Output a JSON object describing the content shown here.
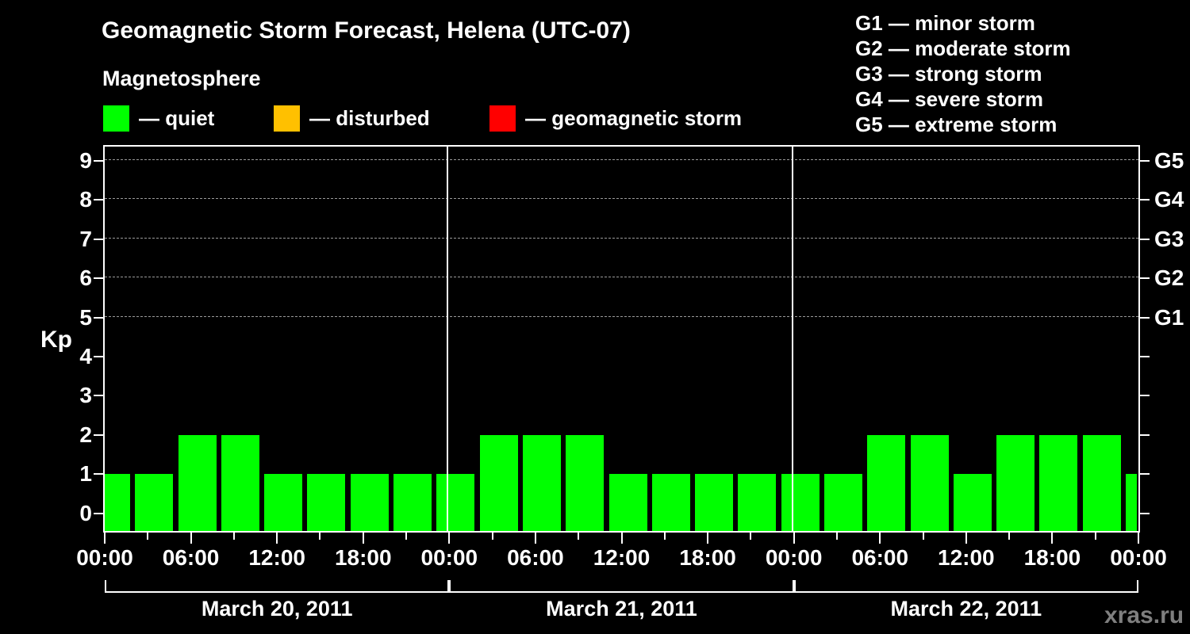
{
  "title": "Geomagnetic Storm Forecast, Helena (UTC-07)",
  "subtitle": "Magnetosphere",
  "legend": {
    "items": [
      {
        "name": "quiet",
        "label": "— quiet",
        "color": "#00FF00"
      },
      {
        "name": "disturbed",
        "label": "— disturbed",
        "color": "#FFC000"
      },
      {
        "name": "geomagnetic-storm",
        "label": "— geomagnetic storm",
        "color": "#FF0000"
      }
    ]
  },
  "g_scale_legend": {
    "items": [
      "G1 — minor storm",
      "G2 — moderate storm",
      "G3 — strong storm",
      "G4 — severe storm",
      "G5 — extreme storm"
    ]
  },
  "watermark": "xras.ru",
  "chart_data": {
    "type": "bar",
    "title": "Geomagnetic Storm Forecast, Helena (UTC-07)",
    "ylabel": "Kp",
    "ylim": [
      -0.45,
      9.36
    ],
    "yticks": [
      0,
      1,
      2,
      3,
      4,
      5,
      6,
      7,
      8,
      9
    ],
    "gridlines_at": [
      5,
      6,
      7,
      8,
      9
    ],
    "grid": "dashed horizontal at G-storm levels only",
    "right_axis_labels": [
      {
        "value": 9,
        "label": "G5"
      },
      {
        "value": 8,
        "label": "G4"
      },
      {
        "value": 7,
        "label": "G3"
      },
      {
        "value": 6,
        "label": "G2"
      },
      {
        "value": 5,
        "label": "G1"
      }
    ],
    "interval_hours": 3,
    "x_tick_labels": [
      "00:00",
      "06:00",
      "12:00",
      "18:00",
      "00:00",
      "06:00",
      "12:00",
      "18:00",
      "00:00",
      "06:00",
      "12:00",
      "18:00",
      "00:00"
    ],
    "days": [
      {
        "date": "March 20, 2011",
        "values": [
          1,
          1,
          2,
          2,
          1,
          1,
          1,
          1
        ]
      },
      {
        "date": "March 21, 2011",
        "values": [
          1,
          2,
          2,
          2,
          1,
          1,
          1,
          1
        ]
      },
      {
        "date": "March 22, 2011",
        "values": [
          1,
          1,
          2,
          2,
          1,
          2,
          2,
          2
        ]
      }
    ],
    "partial_next_bar": 1,
    "bar_color": "#00FF00",
    "legend_position": "top-left",
    "background_color": "#000000"
  }
}
